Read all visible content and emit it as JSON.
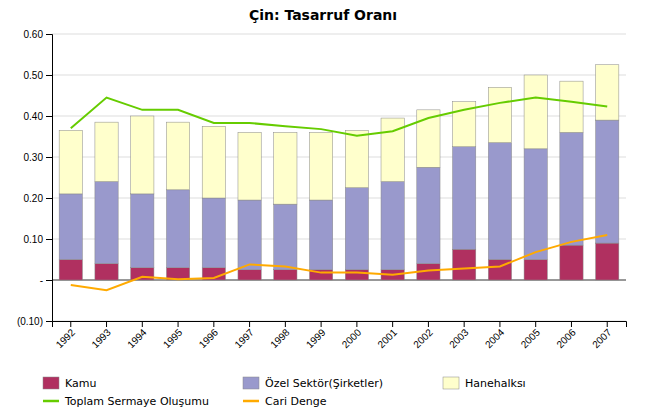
{
  "chart_data": {
    "type": "bar",
    "title": "Çin: Tasarruf Oranı",
    "stacked": true,
    "grid": true,
    "legend": "bottom",
    "categories": [
      "1992",
      "1993",
      "1994",
      "1995",
      "1996",
      "1997",
      "1998",
      "1999",
      "2000",
      "2001",
      "2002",
      "2003",
      "2004",
      "2005",
      "2006",
      "2007"
    ],
    "series": [
      {
        "name": "Kamu",
        "type": "bar",
        "color": "#b03060",
        "values": [
          0.05,
          0.04,
          0.03,
          0.03,
          0.03,
          0.025,
          0.025,
          0.025,
          0.025,
          0.025,
          0.04,
          0.075,
          0.05,
          0.05,
          0.085,
          0.09
        ]
      },
      {
        "name": "Özel Sektör(Şirketler)",
        "type": "bar",
        "color": "#9999cc",
        "values": [
          0.16,
          0.2,
          0.18,
          0.19,
          0.17,
          0.17,
          0.16,
          0.17,
          0.2,
          0.215,
          0.235,
          0.25,
          0.285,
          0.27,
          0.275,
          0.3
        ]
      },
      {
        "name": "Hanehalksı",
        "type": "bar",
        "color": "#ffffcc",
        "values": [
          0.155,
          0.145,
          0.19,
          0.165,
          0.175,
          0.165,
          0.175,
          0.165,
          0.14,
          0.155,
          0.14,
          0.11,
          0.135,
          0.18,
          0.125,
          0.135
        ]
      },
      {
        "name": "Toplam Sermaye Oluşumu",
        "type": "line",
        "color": "#66cc00",
        "values": [
          0.37,
          0.445,
          0.415,
          0.415,
          0.383,
          0.383,
          0.375,
          0.368,
          0.352,
          0.363,
          0.395,
          0.415,
          0.432,
          0.445,
          0.435,
          0.423
        ]
      },
      {
        "name": "Cari Denge",
        "type": "line",
        "color": "#ffaa00",
        "values": [
          -0.012,
          -0.025,
          0.008,
          0.002,
          0.005,
          0.038,
          0.033,
          0.018,
          0.018,
          0.013,
          0.023,
          0.028,
          0.033,
          0.068,
          0.093,
          0.11
        ]
      }
    ],
    "ylim": [
      -0.1,
      0.6
    ],
    "yticks": [
      {
        "value": -0.1,
        "label": "(0.10)"
      },
      {
        "value": 0.0,
        "label": "-"
      },
      {
        "value": 0.1,
        "label": "0.10"
      },
      {
        "value": 0.2,
        "label": "0.20"
      },
      {
        "value": 0.3,
        "label": "0.30"
      },
      {
        "value": 0.4,
        "label": "0.40"
      },
      {
        "value": 0.5,
        "label": "0.50"
      },
      {
        "value": 0.6,
        "label": "0.60"
      }
    ]
  }
}
